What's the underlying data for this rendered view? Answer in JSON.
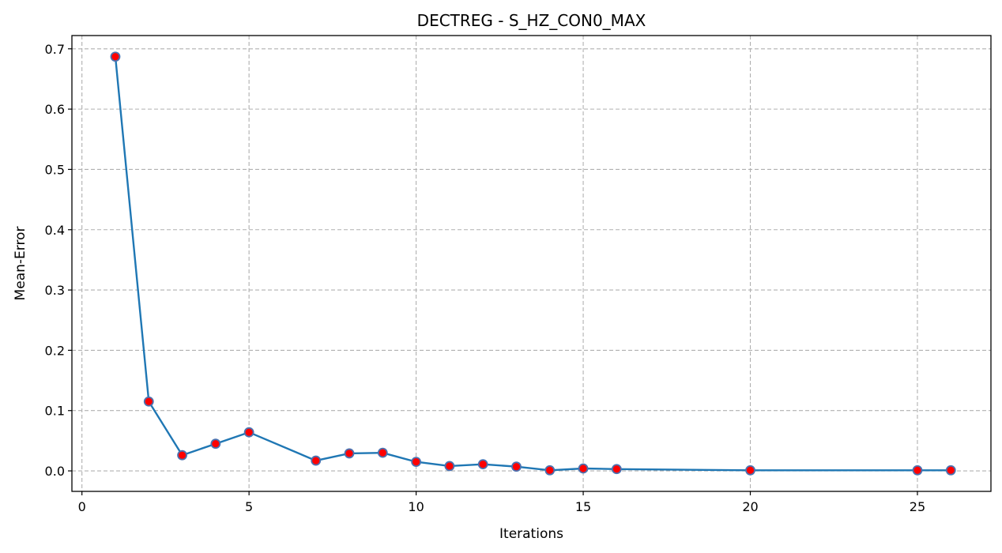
{
  "chart_data": {
    "type": "line",
    "title": "DECTREG - S_HZ_CON0_MAX",
    "xlabel": "Iterations",
    "ylabel": "Mean-Error",
    "xlim": [
      -0.3,
      27.2
    ],
    "ylim": [
      -0.034,
      0.722
    ],
    "xticks": [
      0,
      5,
      10,
      15,
      20,
      25
    ],
    "xtick_labels": [
      "0",
      "5",
      "10",
      "15",
      "20",
      "25"
    ],
    "yticks": [
      0.0,
      0.1,
      0.2,
      0.3,
      0.4,
      0.5,
      0.6,
      0.7
    ],
    "ytick_labels": [
      "0.0",
      "0.1",
      "0.2",
      "0.3",
      "0.4",
      "0.5",
      "0.6",
      "0.7"
    ],
    "grid": true,
    "series": [
      {
        "line_color": "#1f77b4",
        "marker_face": "#ff0000",
        "marker_edge": "#4c72b0",
        "x": [
          1,
          2,
          3,
          4,
          5,
          7,
          8,
          9,
          10,
          11,
          12,
          13,
          14,
          15,
          16,
          20,
          25,
          26
        ],
        "values": [
          0.687,
          0.115,
          0.026,
          0.045,
          0.064,
          0.017,
          0.029,
          0.03,
          0.015,
          0.008,
          0.011,
          0.007,
          0.001,
          0.004,
          0.003,
          0.001,
          0.001,
          0.001
        ]
      }
    ]
  }
}
